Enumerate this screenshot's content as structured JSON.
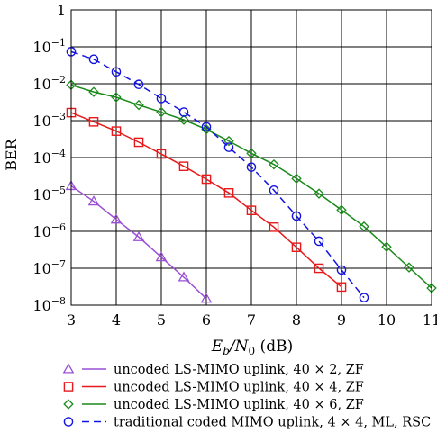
{
  "chart_data": {
    "type": "line",
    "xlabel_parts": {
      "E": "E",
      "sub": "b",
      "mid": "/N",
      "sub2": "0",
      "unit": " (dB)"
    },
    "ylabel": "BER",
    "x_ticks": [
      3,
      4,
      5,
      6,
      7,
      8,
      9,
      10,
      11
    ],
    "xlim": [
      3,
      11
    ],
    "ylim_log10": [
      -8,
      0
    ],
    "y_scale": "log",
    "grid": true,
    "y_ticks": [
      {
        "exp": 0,
        "label": "1"
      },
      {
        "exp": -1,
        "label": "10",
        "sup": "−1"
      },
      {
        "exp": -2,
        "label": "10",
        "sup": "−2"
      },
      {
        "exp": -3,
        "label": "10",
        "sup": "−3"
      },
      {
        "exp": -4,
        "label": "10",
        "sup": "−4"
      },
      {
        "exp": -5,
        "label": "10",
        "sup": "−5"
      },
      {
        "exp": -6,
        "label": "10",
        "sup": "−6"
      },
      {
        "exp": -7,
        "label": "10",
        "sup": "−7"
      },
      {
        "exp": -8,
        "label": "10",
        "sup": "−8"
      }
    ],
    "legend_position": "below",
    "series": [
      {
        "name": "uncoded LS-MIMO uplink, 40 × 2, ZF",
        "color": "#9a4fd6",
        "marker": "triangle",
        "dash": "solid",
        "x": [
          3,
          3.5,
          4,
          4.5,
          5,
          5.5,
          6
        ],
        "y": [
          1.7e-05,
          6.5e-06,
          2.1e-06,
          7e-07,
          2e-07,
          5.7e-08,
          1.5e-08
        ]
      },
      {
        "name": "uncoded LS-MIMO uplink, 40 × 4, ZF",
        "color": "#e8191b",
        "marker": "square",
        "dash": "solid",
        "x": [
          3,
          3.5,
          4,
          4.5,
          5,
          5.5,
          6,
          6.5,
          7,
          7.5,
          8,
          8.5,
          9
        ],
        "y": [
          0.00165,
          0.00093,
          0.00052,
          0.00026,
          0.000125,
          5.8e-05,
          2.6e-05,
          1.1e-05,
          3.7e-06,
          1.3e-06,
          3.7e-07,
          1e-07,
          3.1e-08
        ]
      },
      {
        "name": "uncoded LS-MIMO uplink, 40 × 6, ZF",
        "color": "#1a8a1a",
        "marker": "diamond",
        "dash": "solid",
        "x": [
          3,
          3.5,
          4,
          4.5,
          5,
          5.5,
          6,
          6.5,
          7,
          7.5,
          8,
          8.5,
          9,
          9.5,
          10,
          10.5,
          11
        ],
        "y": [
          0.0093,
          0.006,
          0.0043,
          0.00265,
          0.0017,
          0.00105,
          0.00058,
          0.00028,
          0.00013,
          6.5e-05,
          2.7e-05,
          1.05e-05,
          3.8e-06,
          1.35e-06,
          3.8e-07,
          1.05e-07,
          2.9e-08
        ]
      },
      {
        "name": "traditional coded MIMO uplink, 4 × 4, ML, RSC",
        "color": "#1414e0",
        "marker": "circle",
        "dash": "dashed",
        "x": [
          3,
          3.5,
          4,
          4.5,
          5,
          5.5,
          6,
          6.5,
          7,
          7.5,
          8,
          8.5,
          9,
          9.5
        ],
        "y": [
          0.074,
          0.046,
          0.021,
          0.0096,
          0.004,
          0.0017,
          0.00068,
          0.00019,
          5.5e-05,
          1.3e-05,
          2.6e-06,
          5.4e-07,
          9e-08,
          1.6e-08
        ]
      }
    ]
  }
}
